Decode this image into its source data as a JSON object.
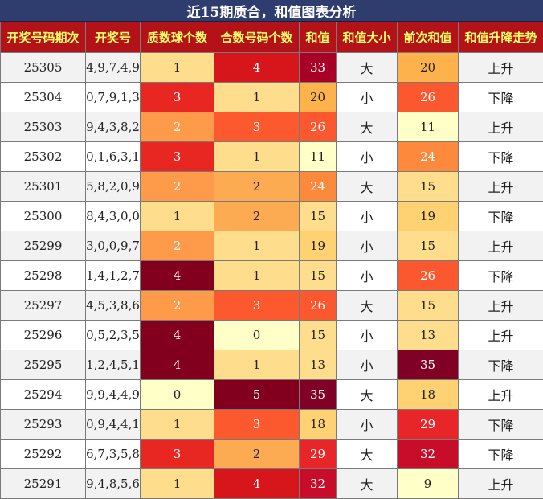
{
  "title": "近15期质合，和值图表分析",
  "headers": [
    "开奖号码期次",
    "开奖号",
    "质数球个数",
    "合数号码个数",
    "和值",
    "和值大小",
    "前次和值",
    "和值升降走势"
  ],
  "rows": [
    {
      "period": "25305",
      "numbers": "4,9,7,4,9",
      "primes": "1",
      "composites": "4",
      "sum": "33",
      "size": "大",
      "prev_sum": "20",
      "trend": "上升"
    },
    {
      "period": "25304",
      "numbers": "0,7,9,1,3",
      "primes": "3",
      "composites": "1",
      "sum": "20",
      "size": "小",
      "prev_sum": "26",
      "trend": "下降"
    },
    {
      "period": "25303",
      "numbers": "9,4,3,8,2",
      "primes": "2",
      "composites": "3",
      "sum": "26",
      "size": "大",
      "prev_sum": "11",
      "trend": "上升"
    },
    {
      "period": "25302",
      "numbers": "0,1,6,3,1",
      "primes": "3",
      "composites": "1",
      "sum": "11",
      "size": "小",
      "prev_sum": "24",
      "trend": "下降"
    },
    {
      "period": "25301",
      "numbers": "5,8,2,0,9",
      "primes": "2",
      "composites": "2",
      "sum": "24",
      "size": "大",
      "prev_sum": "15",
      "trend": "上升"
    },
    {
      "period": "25300",
      "numbers": "8,4,3,0,0",
      "primes": "1",
      "composites": "2",
      "sum": "15",
      "size": "小",
      "prev_sum": "19",
      "trend": "下降"
    },
    {
      "period": "25299",
      "numbers": "3,0,0,9,7",
      "primes": "2",
      "composites": "1",
      "sum": "19",
      "size": "小",
      "prev_sum": "15",
      "trend": "上升"
    },
    {
      "period": "25298",
      "numbers": "1,4,1,2,7",
      "primes": "4",
      "composites": "1",
      "sum": "15",
      "size": "小",
      "prev_sum": "26",
      "trend": "下降"
    },
    {
      "period": "25297",
      "numbers": "4,5,3,8,6",
      "primes": "2",
      "composites": "3",
      "sum": "26",
      "size": "大",
      "prev_sum": "15",
      "trend": "上升"
    },
    {
      "period": "25296",
      "numbers": "0,5,2,3,5",
      "primes": "4",
      "composites": "0",
      "sum": "15",
      "size": "小",
      "prev_sum": "13",
      "trend": "上升"
    },
    {
      "period": "25295",
      "numbers": "1,2,4,5,1",
      "primes": "4",
      "composites": "1",
      "sum": "13",
      "size": "小",
      "prev_sum": "35",
      "trend": "下降"
    },
    {
      "period": "25294",
      "numbers": "9,9,4,4,9",
      "primes": "0",
      "composites": "5",
      "sum": "35",
      "size": "大",
      "prev_sum": "18",
      "trend": "上升"
    },
    {
      "period": "25293",
      "numbers": "0,9,4,4,1",
      "primes": "1",
      "composites": "3",
      "sum": "18",
      "size": "小",
      "prev_sum": "29",
      "trend": "下降"
    },
    {
      "period": "25292",
      "numbers": "6,7,3,5,8",
      "primes": "3",
      "composites": "2",
      "sum": "29",
      "size": "大",
      "prev_sum": "32",
      "trend": "下降"
    },
    {
      "period": "25291",
      "numbers": "9,4,8,5,6",
      "primes": "1",
      "composites": "4",
      "sum": "32",
      "size": "大",
      "prev_sum": "9",
      "trend": "上升"
    }
  ],
  "colors": {
    "count_scale": {
      "0": "#ffffc8",
      "1": "#fedd8c",
      "2": "#fe9b4a",
      "3": "#e82622",
      "4": "#82001e",
      "5": "#82001e"
    },
    "composite_scale": {
      "0": "#ffffc8",
      "1": "#fedd8c",
      "2": "#fdab52",
      "3": "#fc5a2e",
      "4": "#d7161c",
      "5": "#82001e"
    },
    "sum_scale": [
      {
        "max": 12,
        "color": "#ffffc8"
      },
      {
        "max": 16,
        "color": "#fedd8c"
      },
      {
        "max": 19,
        "color": "#fed273"
      },
      {
        "max": 22,
        "color": "#feb24c"
      },
      {
        "max": 25,
        "color": "#fd8a3c"
      },
      {
        "max": 27,
        "color": "#fc5830"
      },
      {
        "max": 30,
        "color": "#e8262a"
      },
      {
        "max": 32,
        "color": "#c80d2a"
      },
      {
        "max": 33,
        "color": "#a80026"
      },
      {
        "max": 99,
        "color": "#800026"
      }
    ]
  }
}
